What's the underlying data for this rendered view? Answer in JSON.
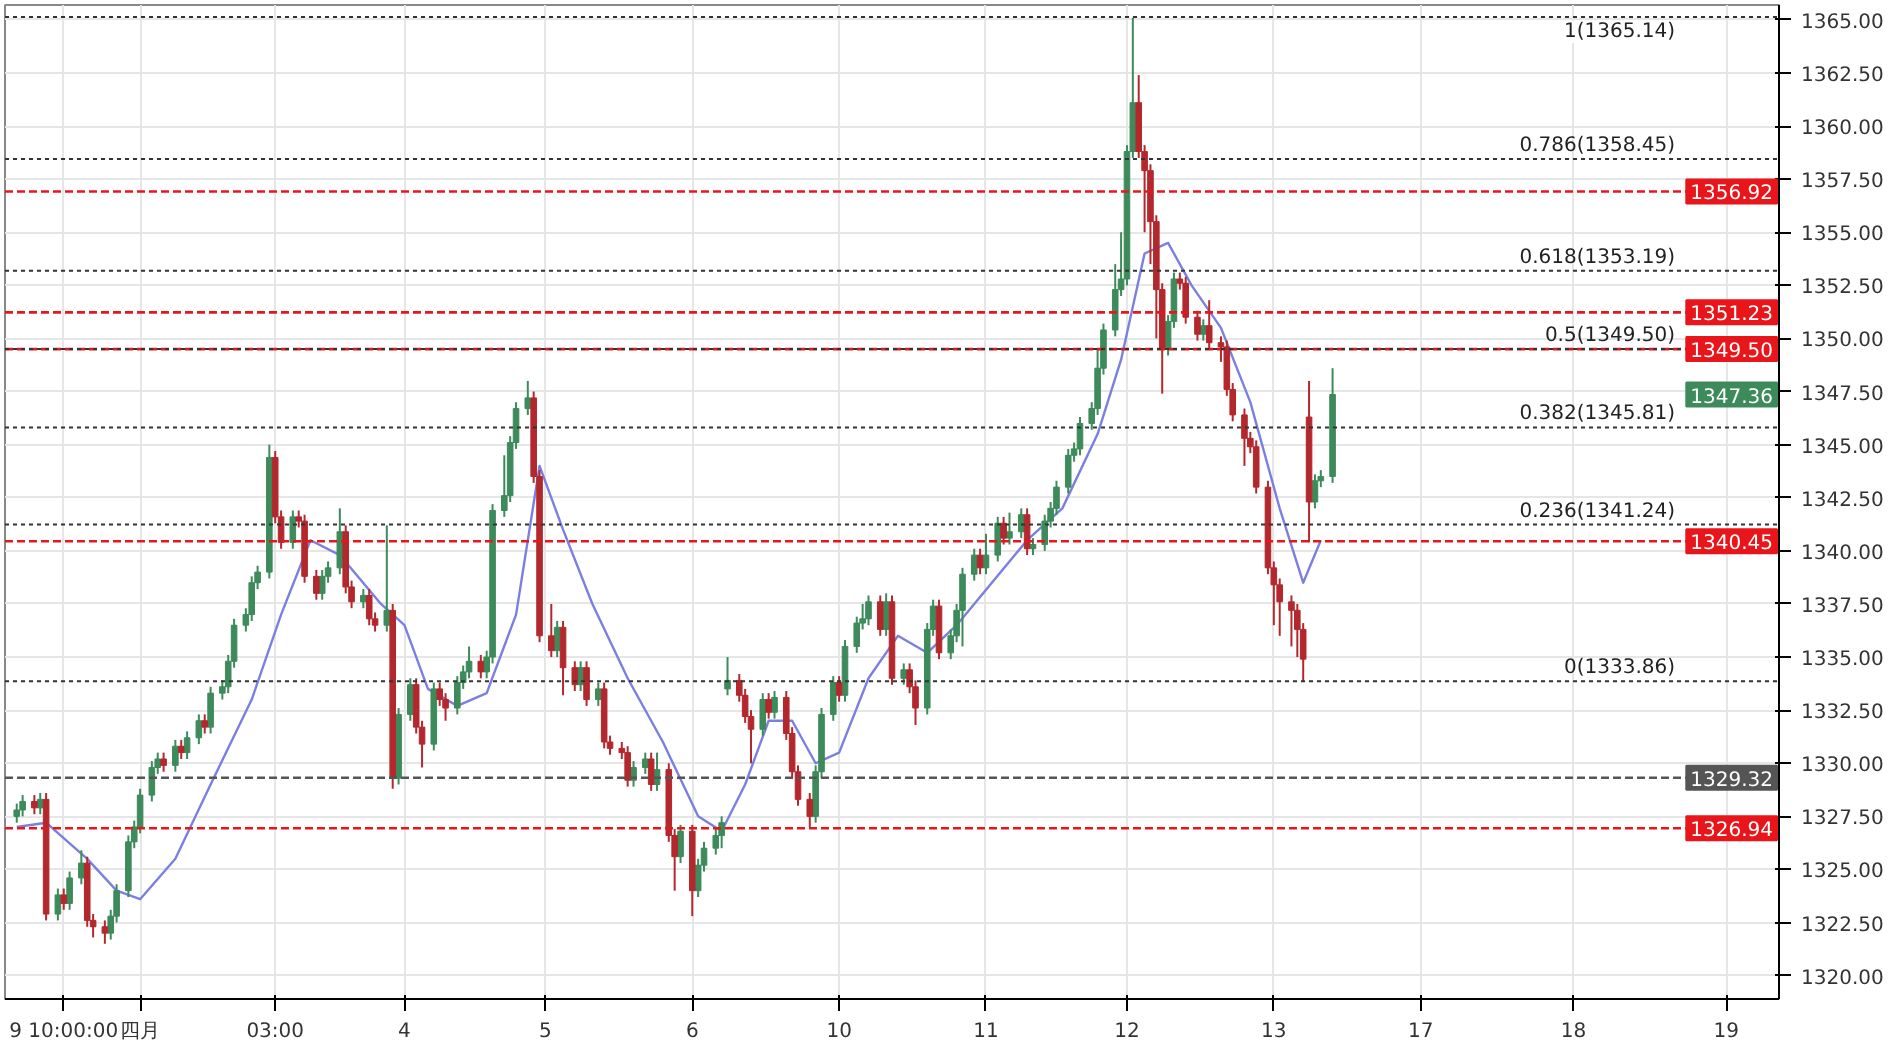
{
  "chart_data": {
    "type": "candlestick",
    "categories": [
      null,
      null,
      null,
      null,
      null,
      null,
      null,
      null,
      "9 10:00:00",
      null,
      null,
      null,
      null,
      null,
      null,
      null,
      null,
      null,
      null,
      null,
      null,
      "四月",
      null,
      null,
      null,
      null,
      null,
      null,
      null,
      null,
      null,
      null,
      null,
      null,
      null,
      null,
      null,
      null,
      null,
      null,
      null,
      null,
      null,
      null,
      "03:00",
      null,
      null,
      null,
      null,
      null,
      null,
      null,
      null,
      null,
      null,
      null,
      null,
      null,
      null,
      null,
      null,
      null,
      null,
      null,
      null,
      null,
      "4",
      null,
      null,
      null,
      null,
      null,
      null,
      null,
      null,
      null,
      null,
      null,
      null,
      null,
      null,
      null,
      null,
      null,
      null,
      null,
      null,
      null,
      null,
      null,
      "5",
      null,
      null,
      null,
      null,
      null,
      null,
      null,
      null,
      null,
      null,
      null,
      null,
      null,
      null,
      null,
      null,
      null,
      null,
      null,
      null,
      null,
      null,
      null,
      null,
      "6",
      null,
      null,
      null,
      null,
      null,
      null,
      null,
      null,
      null,
      null,
      null,
      null,
      null,
      null,
      null,
      null,
      null,
      null,
      null,
      null,
      null,
      null,
      null,
      null,
      "10",
      null,
      null,
      null,
      null,
      null,
      null,
      null,
      null,
      null,
      null,
      null,
      null,
      null,
      null,
      null,
      null,
      null,
      null,
      null,
      null,
      null,
      null,
      null,
      null,
      "11",
      null,
      null,
      null,
      null,
      null,
      null,
      null,
      null,
      null,
      null,
      null,
      null,
      null,
      null,
      null,
      null,
      null,
      null,
      null,
      null,
      null,
      null,
      null,
      "12",
      null,
      null,
      null,
      null,
      null,
      null,
      null,
      null,
      null,
      null,
      null,
      null,
      null,
      null,
      null,
      null,
      null,
      null,
      null,
      null,
      null,
      null,
      null,
      null,
      "13",
      null,
      null,
      null,
      null,
      null,
      null,
      null,
      null,
      null,
      null,
      null,
      null,
      null,
      null,
      null,
      null,
      null,
      null,
      null,
      null,
      null,
      null,
      null,
      null,
      "17",
      null,
      null,
      null,
      null,
      null,
      null,
      null,
      null,
      null,
      null,
      null,
      null,
      null,
      null,
      null,
      null,
      null,
      null,
      null,
      null,
      null,
      null,
      null,
      null,
      null,
      "18",
      null,
      null,
      null,
      null,
      null,
      null,
      null,
      null,
      null,
      null,
      null,
      null,
      null,
      null,
      null,
      null,
      null,
      null,
      null,
      null,
      null,
      null,
      null,
      null,
      null,
      "19"
    ],
    "ohlc": [
      [
        1327.5,
        1328.1,
        1327.2,
        1327.8
      ],
      [
        1327.8,
        1328.5,
        1327.5,
        1328.2
      ],
      null,
      [
        1328.2,
        1328.5,
        1327.6,
        1327.9
      ],
      [
        1327.9,
        1328.6,
        1327.6,
        1328.3
      ],
      [
        1328.3,
        1328.6,
        1322.6,
        1322.9
      ],
      null,
      [
        1322.9,
        1324.1,
        1322.6,
        1323.8
      ],
      [
        1323.8,
        1324.1,
        1323.1,
        1323.4
      ],
      [
        1323.4,
        1324.9,
        1323.1,
        1324.6
      ],
      null,
      [
        1324.6,
        1325.9,
        1324.3,
        1325.3
      ],
      [
        1325.3,
        1325.6,
        1322.3,
        1322.6
      ],
      [
        1322.6,
        1322.9,
        1321.8,
        1322.3
      ],
      null,
      [
        1322.3,
        1322.6,
        1321.5,
        1322.0
      ],
      [
        1322.0,
        1323.1,
        1321.7,
        1322.8
      ],
      [
        1322.8,
        1324.3,
        1322.5,
        1324.0
      ],
      null,
      [
        1324.0,
        1326.6,
        1323.7,
        1326.3
      ],
      [
        1326.3,
        1327.3,
        1326.0,
        1327.0
      ],
      [
        1327.0,
        1328.8,
        1326.7,
        1328.5
      ],
      null,
      [
        1328.5,
        1330.1,
        1328.2,
        1329.8
      ],
      [
        1329.8,
        1330.5,
        1329.5,
        1330.2
      ],
      [
        1330.2,
        1330.5,
        1329.6,
        1329.9
      ],
      null,
      [
        1329.9,
        1331.1,
        1329.6,
        1330.8
      ],
      [
        1330.8,
        1331.1,
        1330.2,
        1330.5
      ],
      [
        1330.5,
        1331.5,
        1330.2,
        1331.2
      ],
      null,
      [
        1331.2,
        1332.3,
        1330.9,
        1332.0
      ],
      [
        1332.0,
        1332.3,
        1331.4,
        1331.7
      ],
      [
        1331.7,
        1333.6,
        1331.4,
        1333.3
      ],
      null,
      [
        1333.3,
        1333.9,
        1333.0,
        1333.6
      ],
      [
        1333.6,
        1335.1,
        1333.3,
        1334.8
      ],
      [
        1334.8,
        1336.8,
        1334.5,
        1336.5
      ],
      null,
      [
        1336.5,
        1337.3,
        1336.2,
        1337.0
      ],
      [
        1337.0,
        1338.8,
        1336.7,
        1338.5
      ],
      [
        1338.5,
        1339.3,
        1338.2,
        1339.0
      ],
      null,
      [
        1339.0,
        1345.0,
        1338.7,
        1344.4
      ],
      [
        1344.4,
        1344.7,
        1341.3,
        1341.6
      ],
      [
        1341.6,
        1341.9,
        1340.1,
        1340.4
      ],
      null,
      [
        1340.4,
        1341.9,
        1340.1,
        1341.6
      ],
      [
        1341.6,
        1341.9,
        1341.1,
        1341.4
      ],
      [
        1341.4,
        1341.7,
        1338.5,
        1338.8
      ],
      null,
      [
        1338.8,
        1339.1,
        1337.7,
        1338.0
      ],
      [
        1338.0,
        1339.1,
        1337.7,
        1338.8
      ],
      [
        1338.8,
        1339.5,
        1338.5,
        1339.2
      ],
      null,
      [
        1339.2,
        1342.0,
        1338.9,
        1340.9
      ],
      [
        1340.9,
        1341.2,
        1338.0,
        1338.3
      ],
      [
        1338.3,
        1338.6,
        1337.3,
        1337.6
      ],
      null,
      [
        1337.6,
        1338.2,
        1337.3,
        1337.9
      ],
      [
        1337.9,
        1338.2,
        1336.5,
        1336.8
      ],
      [
        1336.8,
        1337.1,
        1336.2,
        1336.5
      ],
      null,
      [
        1336.5,
        1341.2,
        1336.2,
        1337.2
      ],
      [
        1337.2,
        1337.5,
        1328.8,
        1329.3
      ],
      [
        1329.3,
        1332.6,
        1329.0,
        1332.3
      ],
      null,
      [
        1332.3,
        1334.0,
        1332.0,
        1333.7
      ],
      [
        1333.7,
        1334.0,
        1331.4,
        1331.7
      ],
      [
        1331.7,
        1332.0,
        1329.8,
        1330.9
      ],
      null,
      [
        1330.9,
        1333.8,
        1330.6,
        1333.5
      ],
      [
        1333.5,
        1333.8,
        1332.7,
        1333.0
      ],
      [
        1333.0,
        1333.3,
        1332.0,
        1332.6
      ],
      null,
      [
        1332.6,
        1334.1,
        1332.3,
        1333.8
      ],
      [
        1333.8,
        1334.6,
        1333.5,
        1334.3
      ],
      [
        1334.3,
        1335.5,
        1334.0,
        1334.8
      ],
      null,
      [
        1334.8,
        1335.1,
        1334.0,
        1334.3
      ],
      [
        1334.3,
        1335.3,
        1334.0,
        1335.0
      ],
      [
        1335.0,
        1342.2,
        1334.7,
        1341.9
      ],
      null,
      [
        1341.9,
        1344.5,
        1341.6,
        1342.6
      ],
      [
        1342.6,
        1345.4,
        1342.3,
        1345.1
      ],
      [
        1345.1,
        1347.0,
        1344.8,
        1346.7
      ],
      null,
      [
        1346.7,
        1348.0,
        1346.4,
        1347.2
      ],
      [
        1347.2,
        1347.5,
        1343.2,
        1343.5
      ],
      [
        1343.5,
        1343.8,
        1335.7,
        1336.0
      ],
      null,
      [
        1336.0,
        1337.5,
        1335.0,
        1335.3
      ],
      [
        1335.3,
        1336.7,
        1335.0,
        1336.4
      ],
      [
        1336.4,
        1336.7,
        1333.2,
        1334.5
      ],
      null,
      [
        1334.5,
        1334.8,
        1333.4,
        1333.7
      ],
      [
        1333.7,
        1334.8,
        1333.4,
        1334.5
      ],
      [
        1334.5,
        1334.8,
        1332.7,
        1333.0
      ],
      null,
      [
        1333.0,
        1333.8,
        1332.7,
        1333.5
      ],
      [
        1333.5,
        1333.8,
        1330.7,
        1331.0
      ],
      [
        1331.0,
        1331.3,
        1330.4,
        1330.7
      ],
      null,
      [
        1330.7,
        1331.0,
        1330.2,
        1330.5
      ],
      [
        1330.5,
        1330.8,
        1328.9,
        1329.2
      ],
      [
        1329.2,
        1330.1,
        1328.9,
        1329.8
      ],
      null,
      [
        1329.8,
        1330.5,
        1329.5,
        1330.2
      ],
      [
        1330.2,
        1330.5,
        1328.7,
        1329.0
      ],
      [
        1329.0,
        1330.5,
        1328.7,
        1329.7
      ],
      null,
      [
        1329.7,
        1330.0,
        1326.3,
        1326.6
      ],
      [
        1326.6,
        1326.9,
        1324.0,
        1325.6
      ],
      [
        1325.6,
        1327.1,
        1325.3,
        1326.8
      ],
      null,
      [
        1326.8,
        1327.1,
        1322.8,
        1324.0
      ],
      [
        1324.0,
        1325.5,
        1323.7,
        1325.2
      ],
      [
        1325.2,
        1326.3,
        1324.9,
        1326.0
      ],
      null,
      [
        1326.0,
        1326.9,
        1325.7,
        1326.6
      ],
      [
        1326.6,
        1327.5,
        1326.0,
        1327.2
      ],
      [
        1333.5,
        1335.0,
        1333.2,
        1333.9
      ],
      null,
      [
        1333.9,
        1334.2,
        1332.9,
        1333.2
      ],
      [
        1333.2,
        1333.5,
        1331.9,
        1332.2
      ],
      [
        1332.2,
        1332.5,
        1330.0,
        1331.6
      ],
      null,
      [
        1331.6,
        1333.3,
        1331.3,
        1333.0
      ],
      [
        1333.0,
        1333.3,
        1332.1,
        1332.4
      ],
      [
        1332.4,
        1333.4,
        1332.1,
        1333.1
      ],
      null,
      [
        1333.1,
        1333.4,
        1331.1,
        1331.4
      ],
      [
        1331.4,
        1331.7,
        1329.3,
        1329.6
      ],
      [
        1329.6,
        1329.9,
        1328.0,
        1328.3
      ],
      null,
      [
        1328.3,
        1328.6,
        1327.0,
        1327.5
      ],
      [
        1327.5,
        1329.9,
        1327.2,
        1329.6
      ],
      [
        1329.6,
        1332.6,
        1329.3,
        1332.3
      ],
      null,
      [
        1332.3,
        1334.1,
        1332.0,
        1333.8
      ],
      [
        1333.8,
        1334.1,
        1332.9,
        1333.2
      ],
      [
        1333.2,
        1335.8,
        1332.9,
        1335.5
      ],
      null,
      [
        1335.5,
        1336.9,
        1335.2,
        1336.6
      ],
      [
        1336.6,
        1337.5,
        1336.3,
        1336.8
      ],
      [
        1336.8,
        1337.9,
        1336.5,
        1337.6
      ],
      null,
      [
        1337.6,
        1337.9,
        1336.0,
        1336.3
      ],
      [
        1336.3,
        1338.0,
        1336.0,
        1337.6
      ],
      [
        1337.6,
        1337.9,
        1333.7,
        1334.0
      ],
      null,
      [
        1334.0,
        1334.7,
        1333.7,
        1334.4
      ],
      [
        1334.4,
        1334.7,
        1333.3,
        1333.6
      ],
      [
        1333.6,
        1333.9,
        1331.8,
        1332.6
      ],
      null,
      [
        1332.6,
        1336.6,
        1332.3,
        1336.3
      ],
      [
        1336.3,
        1337.7,
        1336.0,
        1337.4
      ],
      [
        1337.4,
        1337.7,
        1334.9,
        1335.2
      ],
      null,
      [
        1335.2,
        1336.3,
        1334.9,
        1336.0
      ],
      [
        1336.0,
        1337.5,
        1335.7,
        1337.2
      ],
      [
        1337.2,
        1339.2,
        1335.5,
        1338.9
      ],
      null,
      [
        1338.9,
        1340.1,
        1338.6,
        1339.8
      ],
      [
        1339.8,
        1340.1,
        1338.9,
        1339.2
      ],
      [
        1339.2,
        1340.8,
        1338.9,
        1339.8
      ],
      null,
      [
        1339.8,
        1341.6,
        1339.5,
        1341.3
      ],
      [
        1341.3,
        1341.6,
        1340.3,
        1340.6
      ],
      [
        1340.6,
        1341.8,
        1340.3,
        1340.9
      ],
      null,
      [
        1340.9,
        1342.0,
        1340.6,
        1341.7
      ],
      [
        1341.7,
        1342.0,
        1339.8,
        1340.1
      ],
      [
        1340.1,
        1340.6,
        1339.8,
        1340.3
      ],
      null,
      [
        1340.3,
        1341.7,
        1340.0,
        1341.4
      ],
      [
        1341.4,
        1342.3,
        1341.1,
        1342.0
      ],
      [
        1342.0,
        1343.3,
        1341.7,
        1343.0
      ],
      null,
      [
        1343.0,
        1344.8,
        1342.7,
        1344.5
      ],
      [
        1344.5,
        1345.1,
        1344.2,
        1344.8
      ],
      [
        1344.8,
        1346.3,
        1344.5,
        1346.0
      ],
      null,
      [
        1346.0,
        1347.0,
        1345.7,
        1346.7
      ],
      [
        1346.7,
        1349.5,
        1346.4,
        1348.6
      ],
      [
        1348.6,
        1350.7,
        1348.3,
        1350.4
      ],
      null,
      [
        1350.4,
        1353.5,
        1350.1,
        1352.3
      ],
      [
        1352.3,
        1355.0,
        1352.0,
        1352.8
      ],
      [
        1352.8,
        1359.1,
        1352.5,
        1358.8
      ],
      [
        1358.8,
        1365.1,
        1358.5,
        1361.1
      ],
      [
        1361.1,
        1362.4,
        1358.5,
        1358.8
      ],
      [
        1358.8,
        1359.1,
        1355.0,
        1357.9
      ],
      [
        1357.9,
        1358.2,
        1353.5,
        1355.5
      ],
      [
        1355.5,
        1355.8,
        1350.0,
        1352.3
      ],
      [
        1352.3,
        1352.6,
        1347.4,
        1349.5
      ],
      [
        1349.5,
        1351.1,
        1349.2,
        1350.8
      ],
      [
        1350.8,
        1353.1,
        1350.5,
        1352.8
      ],
      [
        1352.8,
        1353.1,
        1352.3,
        1352.6
      ],
      [
        1352.6,
        1352.9,
        1350.7,
        1351.0
      ],
      null,
      [
        1351.0,
        1351.3,
        1349.9,
        1350.2
      ],
      [
        1350.2,
        1350.9,
        1349.9,
        1350.6
      ],
      [
        1350.6,
        1351.8,
        1349.5,
        1349.8
      ],
      null,
      [
        1349.8,
        1350.1,
        1348.9,
        1349.6
      ],
      [
        1349.6,
        1349.9,
        1347.3,
        1347.6
      ],
      [
        1347.6,
        1347.9,
        1346.1,
        1346.4
      ],
      null,
      [
        1346.4,
        1346.7,
        1344.0,
        1345.3
      ],
      [
        1345.3,
        1345.6,
        1344.6,
        1344.9
      ],
      [
        1344.9,
        1345.2,
        1342.7,
        1343.0
      ],
      null,
      [
        1343.0,
        1343.3,
        1338.9,
        1339.2
      ],
      [
        1339.2,
        1339.5,
        1336.5,
        1338.4
      ],
      [
        1338.4,
        1338.7,
        1336.0,
        1337.6
      ],
      null,
      [
        1337.6,
        1337.9,
        1335.5,
        1337.2
      ],
      [
        1337.2,
        1337.5,
        1335.0,
        1336.3
      ],
      [
        1336.3,
        1336.6,
        1333.86,
        1334.9
      ],
      [
        1346.3,
        1348.0,
        1340.4,
        1342.3
      ],
      [
        1342.3,
        1343.6,
        1342.0,
        1343.3
      ],
      [
        1343.3,
        1343.8,
        1343.0,
        1343.5
      ],
      null,
      [
        1343.5,
        1348.6,
        1343.2,
        1347.36
      ],
      null,
      null,
      null,
      null,
      null,
      null,
      null,
      null,
      null,
      null,
      null,
      null,
      null,
      null,
      null,
      null,
      null,
      null,
      null,
      null,
      null,
      null,
      null,
      null,
      null,
      null,
      null,
      null,
      null,
      null,
      null,
      null,
      null,
      null,
      null,
      null,
      null,
      null,
      null,
      null,
      null,
      null,
      null,
      null,
      null,
      null,
      null,
      null,
      null,
      null,
      null,
      null,
      null,
      null,
      null,
      null,
      null,
      null,
      null,
      null,
      null,
      null,
      null,
      null,
      null,
      null,
      null
    ],
    "series": [
      {
        "type": "line",
        "color": "#7b80e0",
        "values": [
          1327.0,
          null,
          null,
          null,
          null,
          1327.2,
          null,
          null,
          null,
          null,
          null,
          null,
          1325.5,
          null,
          null,
          null,
          null,
          1324.0,
          null,
          null,
          null,
          1323.6,
          null,
          null,
          null,
          null,
          null,
          1325.5,
          null,
          null,
          null,
          null,
          null,
          1329.0,
          null,
          null,
          null,
          null,
          null,
          null,
          1333.0,
          null,
          null,
          null,
          null,
          1337.0,
          null,
          null,
          null,
          null,
          1340.5,
          null,
          null,
          null,
          null,
          1339.8,
          null,
          null,
          null,
          null,
          null,
          null,
          1337.5,
          null,
          null,
          null,
          1336.5,
          null,
          null,
          null,
          1333.5,
          null,
          null,
          null,
          null,
          1332.7,
          null,
          null,
          null,
          null,
          1333.3,
          null,
          null,
          null,
          null,
          1337.0,
          null,
          null,
          null,
          1344.0,
          null,
          null,
          null,
          1341.0,
          null,
          null,
          null,
          null,
          1337.5,
          null,
          null,
          null,
          null,
          null,
          1334.0,
          null,
          null,
          null,
          null,
          null,
          1331.0,
          null,
          null,
          null,
          null,
          null,
          1327.5,
          null,
          null,
          null,
          1326.8,
          null,
          null,
          null,
          1329.0,
          null,
          null,
          null,
          1332.0,
          null,
          null,
          null,
          1332.0,
          null,
          null,
          null,
          1330.0,
          null,
          null,
          null,
          1330.5,
          null,
          null,
          null,
          null,
          1334.0,
          null,
          null,
          null,
          null,
          1336.0,
          null,
          null,
          null,
          null,
          1335.2,
          null,
          null,
          null,
          null,
          1336.5,
          null,
          null,
          null,
          null,
          null,
          1338.5,
          null,
          null,
          null,
          null,
          null,
          1340.5,
          null,
          null,
          null,
          null,
          null,
          1342.0,
          null,
          null,
          null,
          null,
          null,
          1345.5,
          null,
          null,
          null,
          1349.0,
          null,
          null,
          null,
          1354.0,
          null,
          null,
          null,
          1354.5,
          null,
          null,
          null,
          1352.5,
          null,
          null,
          null,
          null,
          1350.5,
          null,
          null,
          null,
          null,
          1347.0,
          null,
          null,
          null,
          null,
          1342.0,
          null,
          null,
          null,
          1338.5,
          null,
          null,
          1340.5,
          null,
          null,
          null,
          null,
          null,
          null,
          null,
          null,
          null,
          null,
          null,
          null,
          null,
          null,
          null,
          null,
          null,
          null,
          null,
          null,
          null,
          null,
          null,
          null,
          null,
          null,
          null,
          null,
          null,
          null,
          null,
          null,
          null,
          null,
          null,
          null,
          null,
          null,
          null,
          null,
          null,
          null,
          null,
          null,
          null,
          null,
          null,
          null,
          null,
          null,
          null,
          null,
          null,
          null,
          null,
          null,
          null,
          null,
          null,
          null,
          null,
          null,
          null,
          null,
          null,
          null,
          null,
          null,
          null
        ]
      }
    ],
    "ylim": [
      1318.9,
      1365.7
    ],
    "yticks": [
      {
        "value": 1320,
        "label": "1320.00"
      },
      {
        "value": 1322.5,
        "label": "1322.50"
      },
      {
        "value": 1325,
        "label": "1325.00"
      },
      {
        "value": 1327.5,
        "label": "1327.50"
      },
      {
        "value": 1330,
        "label": "1330.00"
      },
      {
        "value": 1332.5,
        "label": "1332.50"
      },
      {
        "value": 1335,
        "label": "1335.00"
      },
      {
        "value": 1337.5,
        "label": "1337.50"
      },
      {
        "value": 1340,
        "label": "1340.00"
      },
      {
        "value": 1342.5,
        "label": "1342.50"
      },
      {
        "value": 1345,
        "label": "1345.00"
      },
      {
        "value": 1347.5,
        "label": "1347.50"
      },
      {
        "value": 1350,
        "label": "1350.00"
      },
      {
        "value": 1352.5,
        "label": "1352.50"
      },
      {
        "value": 1355,
        "label": "1355.00"
      },
      {
        "value": 1357.5,
        "label": "1357.50"
      },
      {
        "value": 1360,
        "label": "1360.00"
      },
      {
        "value": 1362.5,
        "label": "1362.50"
      },
      {
        "value": 1365,
        "label": "1365.00"
      }
    ],
    "grid": true,
    "ref_lines": [
      {
        "axis": "y",
        "value": 1356.92,
        "label": "1356.92",
        "color": "#e8161b",
        "line_style": "dashed"
      },
      {
        "axis": "y",
        "value": 1351.23,
        "label": "1351.23",
        "color": "#e8161b",
        "line_style": "dashed"
      },
      {
        "axis": "y",
        "value": 1349.5,
        "label": "1349.50",
        "color": "#e8161b",
        "line_style": "dashed"
      },
      {
        "axis": "y",
        "value": 1340.45,
        "label": "1340.45",
        "color": "#e8161b",
        "line_style": "dashed"
      },
      {
        "axis": "y",
        "value": 1326.94,
        "label": "1326.94",
        "color": "#e8161b",
        "line_style": "dashed"
      },
      {
        "axis": "y",
        "value": 1329.32,
        "label": "1329.32",
        "color": "#555555",
        "line_style": "dashed"
      },
      {
        "axis": "y",
        "value": 1365.14,
        "label": "1(1365.14)",
        "color": "#333333",
        "line_style": "dotted"
      },
      {
        "axis": "y",
        "value": 1358.45,
        "label": "0.786(1358.45)",
        "color": "#333333",
        "line_style": "dotted"
      },
      {
        "axis": "y",
        "value": 1353.19,
        "label": "0.618(1353.19)",
        "color": "#333333",
        "line_style": "dotted"
      },
      {
        "axis": "y",
        "value": 1349.5,
        "label": "0.5(1349.50)",
        "color": "#333333",
        "line_style": "dotted"
      },
      {
        "axis": "y",
        "value": 1345.81,
        "label": "0.382(1345.81)",
        "color": "#333333",
        "line_style": "dotted"
      },
      {
        "axis": "y",
        "value": 1341.24,
        "label": "0.236(1341.24)",
        "color": "#333333",
        "line_style": "dotted"
      },
      {
        "axis": "y",
        "value": 1333.86,
        "label": "0(1333.86)",
        "color": "#333333",
        "line_style": "dotted"
      }
    ],
    "annotations": [
      "1347.36"
    ]
  }
}
